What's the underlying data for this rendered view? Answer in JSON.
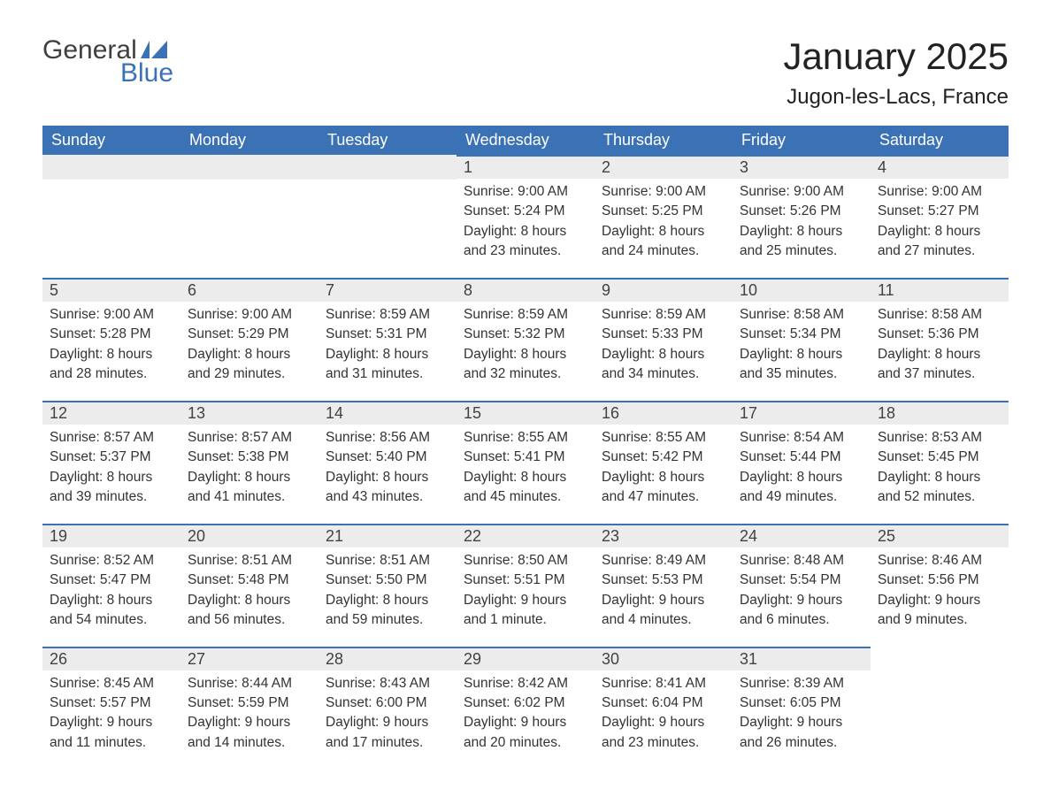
{
  "brand": {
    "word1": "General",
    "word2": "Blue",
    "flag_color": "#3a72b5"
  },
  "title": "January 2025",
  "location": "Jugon-les-Lacs, France",
  "colors": {
    "header_bg": "#3a72b5",
    "header_text": "#ffffff",
    "daynum_bg": "#ececec",
    "daynum_border": "#3a72b5",
    "body_text": "#333333",
    "page_bg": "#ffffff"
  },
  "day_headers": [
    "Sunday",
    "Monday",
    "Tuesday",
    "Wednesday",
    "Thursday",
    "Friday",
    "Saturday"
  ],
  "weeks": [
    [
      null,
      null,
      null,
      {
        "n": "1",
        "sunrise": "9:00 AM",
        "sunset": "5:24 PM",
        "daylight": "8 hours and 23 minutes."
      },
      {
        "n": "2",
        "sunrise": "9:00 AM",
        "sunset": "5:25 PM",
        "daylight": "8 hours and 24 minutes."
      },
      {
        "n": "3",
        "sunrise": "9:00 AM",
        "sunset": "5:26 PM",
        "daylight": "8 hours and 25 minutes."
      },
      {
        "n": "4",
        "sunrise": "9:00 AM",
        "sunset": "5:27 PM",
        "daylight": "8 hours and 27 minutes."
      }
    ],
    [
      {
        "n": "5",
        "sunrise": "9:00 AM",
        "sunset": "5:28 PM",
        "daylight": "8 hours and 28 minutes."
      },
      {
        "n": "6",
        "sunrise": "9:00 AM",
        "sunset": "5:29 PM",
        "daylight": "8 hours and 29 minutes."
      },
      {
        "n": "7",
        "sunrise": "8:59 AM",
        "sunset": "5:31 PM",
        "daylight": "8 hours and 31 minutes."
      },
      {
        "n": "8",
        "sunrise": "8:59 AM",
        "sunset": "5:32 PM",
        "daylight": "8 hours and 32 minutes."
      },
      {
        "n": "9",
        "sunrise": "8:59 AM",
        "sunset": "5:33 PM",
        "daylight": "8 hours and 34 minutes."
      },
      {
        "n": "10",
        "sunrise": "8:58 AM",
        "sunset": "5:34 PM",
        "daylight": "8 hours and 35 minutes."
      },
      {
        "n": "11",
        "sunrise": "8:58 AM",
        "sunset": "5:36 PM",
        "daylight": "8 hours and 37 minutes."
      }
    ],
    [
      {
        "n": "12",
        "sunrise": "8:57 AM",
        "sunset": "5:37 PM",
        "daylight": "8 hours and 39 minutes."
      },
      {
        "n": "13",
        "sunrise": "8:57 AM",
        "sunset": "5:38 PM",
        "daylight": "8 hours and 41 minutes."
      },
      {
        "n": "14",
        "sunrise": "8:56 AM",
        "sunset": "5:40 PM",
        "daylight": "8 hours and 43 minutes."
      },
      {
        "n": "15",
        "sunrise": "8:55 AM",
        "sunset": "5:41 PM",
        "daylight": "8 hours and 45 minutes."
      },
      {
        "n": "16",
        "sunrise": "8:55 AM",
        "sunset": "5:42 PM",
        "daylight": "8 hours and 47 minutes."
      },
      {
        "n": "17",
        "sunrise": "8:54 AM",
        "sunset": "5:44 PM",
        "daylight": "8 hours and 49 minutes."
      },
      {
        "n": "18",
        "sunrise": "8:53 AM",
        "sunset": "5:45 PM",
        "daylight": "8 hours and 52 minutes."
      }
    ],
    [
      {
        "n": "19",
        "sunrise": "8:52 AM",
        "sunset": "5:47 PM",
        "daylight": "8 hours and 54 minutes."
      },
      {
        "n": "20",
        "sunrise": "8:51 AM",
        "sunset": "5:48 PM",
        "daylight": "8 hours and 56 minutes."
      },
      {
        "n": "21",
        "sunrise": "8:51 AM",
        "sunset": "5:50 PM",
        "daylight": "8 hours and 59 minutes."
      },
      {
        "n": "22",
        "sunrise": "8:50 AM",
        "sunset": "5:51 PM",
        "daylight": "9 hours and 1 minute."
      },
      {
        "n": "23",
        "sunrise": "8:49 AM",
        "sunset": "5:53 PM",
        "daylight": "9 hours and 4 minutes."
      },
      {
        "n": "24",
        "sunrise": "8:48 AM",
        "sunset": "5:54 PM",
        "daylight": "9 hours and 6 minutes."
      },
      {
        "n": "25",
        "sunrise": "8:46 AM",
        "sunset": "5:56 PM",
        "daylight": "9 hours and 9 minutes."
      }
    ],
    [
      {
        "n": "26",
        "sunrise": "8:45 AM",
        "sunset": "5:57 PM",
        "daylight": "9 hours and 11 minutes."
      },
      {
        "n": "27",
        "sunrise": "8:44 AM",
        "sunset": "5:59 PM",
        "daylight": "9 hours and 14 minutes."
      },
      {
        "n": "28",
        "sunrise": "8:43 AM",
        "sunset": "6:00 PM",
        "daylight": "9 hours and 17 minutes."
      },
      {
        "n": "29",
        "sunrise": "8:42 AM",
        "sunset": "6:02 PM",
        "daylight": "9 hours and 20 minutes."
      },
      {
        "n": "30",
        "sunrise": "8:41 AM",
        "sunset": "6:04 PM",
        "daylight": "9 hours and 23 minutes."
      },
      {
        "n": "31",
        "sunrise": "8:39 AM",
        "sunset": "6:05 PM",
        "daylight": "9 hours and 26 minutes."
      },
      null
    ]
  ],
  "labels": {
    "sunrise": "Sunrise:",
    "sunset": "Sunset:",
    "daylight": "Daylight:"
  }
}
